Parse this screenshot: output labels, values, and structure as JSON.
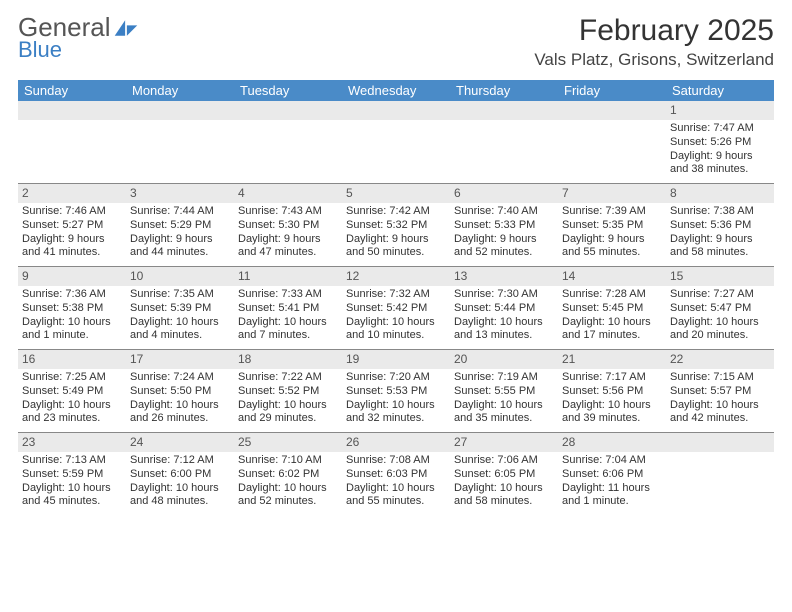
{
  "logo": {
    "word1": "General",
    "word2": "Blue"
  },
  "header": {
    "month": "February 2025",
    "location": "Vals Platz, Grisons, Switzerland"
  },
  "colors": {
    "headerbar": "#4a8bc8",
    "blue": "#3b7fc4",
    "lightgray": "#eaeaea",
    "divider": "#888888",
    "text": "#333333",
    "bg": "#ffffff"
  },
  "dayNames": [
    "Sunday",
    "Monday",
    "Tuesday",
    "Wednesday",
    "Thursday",
    "Friday",
    "Saturday"
  ],
  "weeks": [
    [
      {
        "empty": true
      },
      {
        "empty": true
      },
      {
        "empty": true
      },
      {
        "empty": true
      },
      {
        "empty": true
      },
      {
        "empty": true
      },
      {
        "d": "1",
        "sr": "Sunrise: 7:47 AM",
        "ss": "Sunset: 5:26 PM",
        "dl1": "Daylight: 9 hours",
        "dl2": "and 38 minutes."
      }
    ],
    [
      {
        "d": "2",
        "sr": "Sunrise: 7:46 AM",
        "ss": "Sunset: 5:27 PM",
        "dl1": "Daylight: 9 hours",
        "dl2": "and 41 minutes."
      },
      {
        "d": "3",
        "sr": "Sunrise: 7:44 AM",
        "ss": "Sunset: 5:29 PM",
        "dl1": "Daylight: 9 hours",
        "dl2": "and 44 minutes."
      },
      {
        "d": "4",
        "sr": "Sunrise: 7:43 AM",
        "ss": "Sunset: 5:30 PM",
        "dl1": "Daylight: 9 hours",
        "dl2": "and 47 minutes."
      },
      {
        "d": "5",
        "sr": "Sunrise: 7:42 AM",
        "ss": "Sunset: 5:32 PM",
        "dl1": "Daylight: 9 hours",
        "dl2": "and 50 minutes."
      },
      {
        "d": "6",
        "sr": "Sunrise: 7:40 AM",
        "ss": "Sunset: 5:33 PM",
        "dl1": "Daylight: 9 hours",
        "dl2": "and 52 minutes."
      },
      {
        "d": "7",
        "sr": "Sunrise: 7:39 AM",
        "ss": "Sunset: 5:35 PM",
        "dl1": "Daylight: 9 hours",
        "dl2": "and 55 minutes."
      },
      {
        "d": "8",
        "sr": "Sunrise: 7:38 AM",
        "ss": "Sunset: 5:36 PM",
        "dl1": "Daylight: 9 hours",
        "dl2": "and 58 minutes."
      }
    ],
    [
      {
        "d": "9",
        "sr": "Sunrise: 7:36 AM",
        "ss": "Sunset: 5:38 PM",
        "dl1": "Daylight: 10 hours",
        "dl2": "and 1 minute."
      },
      {
        "d": "10",
        "sr": "Sunrise: 7:35 AM",
        "ss": "Sunset: 5:39 PM",
        "dl1": "Daylight: 10 hours",
        "dl2": "and 4 minutes."
      },
      {
        "d": "11",
        "sr": "Sunrise: 7:33 AM",
        "ss": "Sunset: 5:41 PM",
        "dl1": "Daylight: 10 hours",
        "dl2": "and 7 minutes."
      },
      {
        "d": "12",
        "sr": "Sunrise: 7:32 AM",
        "ss": "Sunset: 5:42 PM",
        "dl1": "Daylight: 10 hours",
        "dl2": "and 10 minutes."
      },
      {
        "d": "13",
        "sr": "Sunrise: 7:30 AM",
        "ss": "Sunset: 5:44 PM",
        "dl1": "Daylight: 10 hours",
        "dl2": "and 13 minutes."
      },
      {
        "d": "14",
        "sr": "Sunrise: 7:28 AM",
        "ss": "Sunset: 5:45 PM",
        "dl1": "Daylight: 10 hours",
        "dl2": "and 17 minutes."
      },
      {
        "d": "15",
        "sr": "Sunrise: 7:27 AM",
        "ss": "Sunset: 5:47 PM",
        "dl1": "Daylight: 10 hours",
        "dl2": "and 20 minutes."
      }
    ],
    [
      {
        "d": "16",
        "sr": "Sunrise: 7:25 AM",
        "ss": "Sunset: 5:49 PM",
        "dl1": "Daylight: 10 hours",
        "dl2": "and 23 minutes."
      },
      {
        "d": "17",
        "sr": "Sunrise: 7:24 AM",
        "ss": "Sunset: 5:50 PM",
        "dl1": "Daylight: 10 hours",
        "dl2": "and 26 minutes."
      },
      {
        "d": "18",
        "sr": "Sunrise: 7:22 AM",
        "ss": "Sunset: 5:52 PM",
        "dl1": "Daylight: 10 hours",
        "dl2": "and 29 minutes."
      },
      {
        "d": "19",
        "sr": "Sunrise: 7:20 AM",
        "ss": "Sunset: 5:53 PM",
        "dl1": "Daylight: 10 hours",
        "dl2": "and 32 minutes."
      },
      {
        "d": "20",
        "sr": "Sunrise: 7:19 AM",
        "ss": "Sunset: 5:55 PM",
        "dl1": "Daylight: 10 hours",
        "dl2": "and 35 minutes."
      },
      {
        "d": "21",
        "sr": "Sunrise: 7:17 AM",
        "ss": "Sunset: 5:56 PM",
        "dl1": "Daylight: 10 hours",
        "dl2": "and 39 minutes."
      },
      {
        "d": "22",
        "sr": "Sunrise: 7:15 AM",
        "ss": "Sunset: 5:57 PM",
        "dl1": "Daylight: 10 hours",
        "dl2": "and 42 minutes."
      }
    ],
    [
      {
        "d": "23",
        "sr": "Sunrise: 7:13 AM",
        "ss": "Sunset: 5:59 PM",
        "dl1": "Daylight: 10 hours",
        "dl2": "and 45 minutes."
      },
      {
        "d": "24",
        "sr": "Sunrise: 7:12 AM",
        "ss": "Sunset: 6:00 PM",
        "dl1": "Daylight: 10 hours",
        "dl2": "and 48 minutes."
      },
      {
        "d": "25",
        "sr": "Sunrise: 7:10 AM",
        "ss": "Sunset: 6:02 PM",
        "dl1": "Daylight: 10 hours",
        "dl2": "and 52 minutes."
      },
      {
        "d": "26",
        "sr": "Sunrise: 7:08 AM",
        "ss": "Sunset: 6:03 PM",
        "dl1": "Daylight: 10 hours",
        "dl2": "and 55 minutes."
      },
      {
        "d": "27",
        "sr": "Sunrise: 7:06 AM",
        "ss": "Sunset: 6:05 PM",
        "dl1": "Daylight: 10 hours",
        "dl2": "and 58 minutes."
      },
      {
        "d": "28",
        "sr": "Sunrise: 7:04 AM",
        "ss": "Sunset: 6:06 PM",
        "dl1": "Daylight: 11 hours",
        "dl2": "and 1 minute."
      },
      {
        "empty": true
      }
    ]
  ]
}
